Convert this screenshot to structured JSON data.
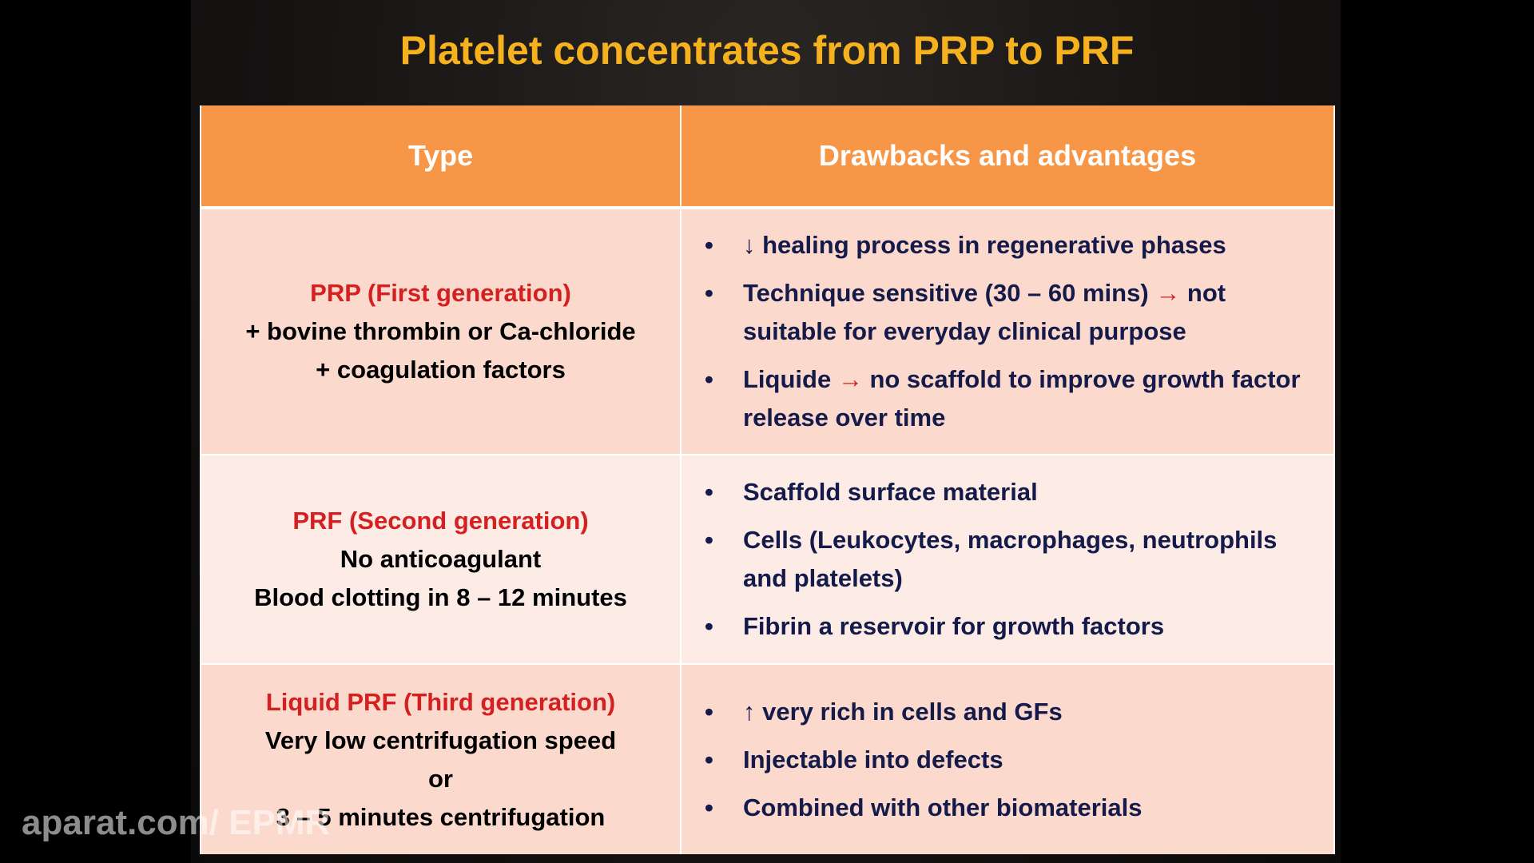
{
  "title": "Platelet concentrates from PRP to PRF",
  "table": {
    "header": [
      "Type",
      "Drawbacks and advantages"
    ],
    "rows": [
      {
        "type": {
          "title": "PRP (First generation)",
          "lines": [
            "+ bovine thrombin or Ca-chloride",
            "+ coagulation factors"
          ]
        },
        "items": [
          "↓ healing process in regenerative phases",
          "Technique sensitive (30 – 60 mins) → not suitable for everyday clinical purpose",
          "Liquide → no scaffold to improve growth factor release over time"
        ]
      },
      {
        "type": {
          "title": "PRF (Second generation)",
          "lines": [
            "No anticoagulant",
            "Blood clotting in 8 – 12 minutes"
          ]
        },
        "items": [
          "Scaffold surface material",
          "Cells (Leukocytes, macrophages, neutrophils and platelets)",
          "Fibrin a reservoir for growth factors"
        ]
      },
      {
        "type": {
          "title": "Liquid PRF (Third generation)",
          "lines": [
            "Very low centrifugation speed",
            "or",
            "3 – 5 minutes centrifugation"
          ]
        },
        "items": [
          "↑ very rich in cells and GFs",
          "Injectable into defects",
          "Combined with other biomaterials"
        ]
      }
    ]
  },
  "watermark": "aparat.com/ EPMR"
}
